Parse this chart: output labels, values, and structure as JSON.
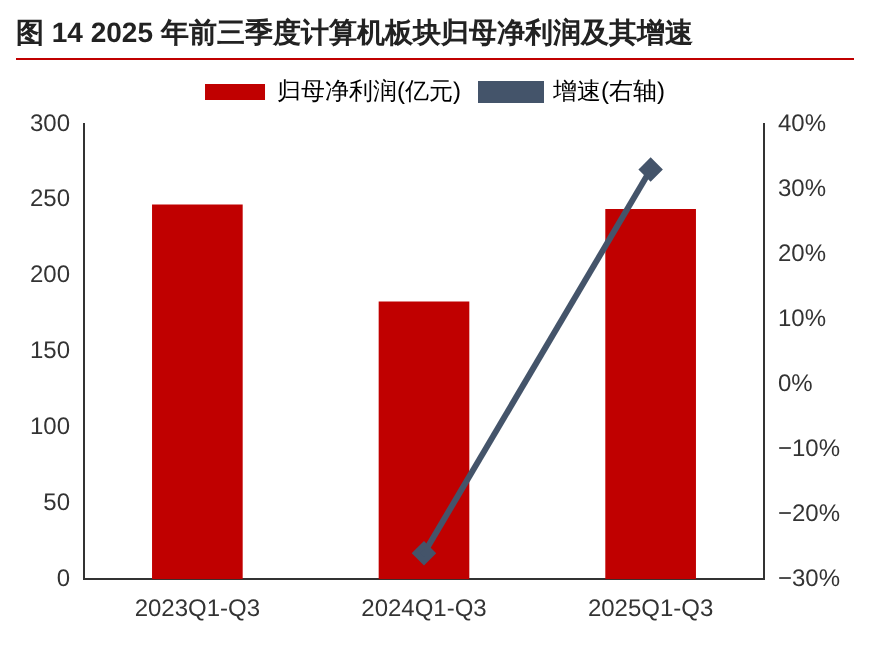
{
  "chart_data": {
    "type": "bar",
    "title": "图 14   2025 年前三季度计算机板块归母净利润及其增速",
    "categories": [
      "2023Q1-Q3",
      "2024Q1-Q3",
      "2025Q1-Q3"
    ],
    "series": [
      {
        "name": "归母净利润(亿元)",
        "color": "#c00000",
        "values": [
          247,
          183,
          244
        ]
      },
      {
        "name": "增速(右轴)",
        "type": "line",
        "color": "#44546a",
        "axis": "y2",
        "marker": "diamond",
        "values": [
          null,
          -26,
          33
        ]
      }
    ],
    "ylim": [
      0,
      300
    ],
    "yticks": [
      0,
      50,
      100,
      150,
      200,
      250,
      300
    ],
    "y2lim": [
      -30,
      40
    ],
    "y2ticks": [
      {
        "value": -30,
        "label": "−30%"
      },
      {
        "value": -20,
        "label": "−20%"
      },
      {
        "value": -10,
        "label": "−10%"
      },
      {
        "value": 0,
        "label": "0%"
      },
      {
        "value": 10,
        "label": "10%"
      },
      {
        "value": 20,
        "label": "20%"
      },
      {
        "value": 30,
        "label": "30%"
      },
      {
        "value": 40,
        "label": "40%"
      }
    ],
    "grid": false,
    "legend": "top"
  }
}
